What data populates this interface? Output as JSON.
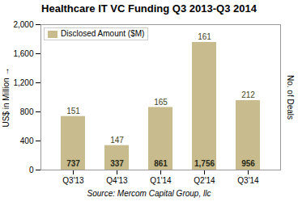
{
  "chart_data": {
    "type": "bar",
    "title": "Healthcare IT VC Funding Q3 2013-Q3 2014",
    "categories": [
      "Q3'13",
      "Q4'13",
      "Q1'14",
      "Q2'14",
      "Q3'14"
    ],
    "series": [
      {
        "name": "Disclosed Amount ($M)",
        "color": "#c8bc8e",
        "values": [
          737,
          337,
          861,
          1756,
          956
        ],
        "value_labels": [
          "737",
          "337",
          "861",
          "1,756",
          "956"
        ],
        "deal_counts": [
          151,
          147,
          165,
          161,
          212
        ]
      }
    ],
    "data_labels": true,
    "ylabel": "US$ in Million",
    "y2label": "No. of Deals",
    "caption": "Source: Mercom Capital Group, llc",
    "ylim": [
      0,
      2000
    ],
    "yticks": [
      0,
      400,
      800,
      {
        "value": 1200,
        "label": "1,200"
      },
      {
        "value": 1600,
        "label": "1,600"
      },
      {
        "value": 2000,
        "label": "2,000"
      }
    ],
    "legend": "upper left",
    "grid": false
  }
}
